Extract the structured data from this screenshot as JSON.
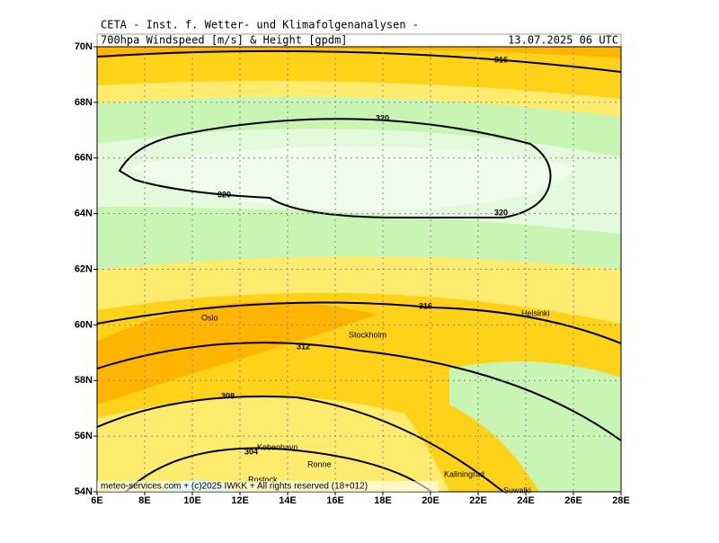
{
  "header": {
    "institute": "CETA - Inst. f. Wetter- und Klimafolgenanalysen -",
    "product": "700hpa Windspeed [m/s] & Height [gpdm]",
    "valid_time": "13.07.2025 06 UTC"
  },
  "lat_labels": [
    "54N",
    "56N",
    "58N",
    "60N",
    "62N",
    "64N",
    "66N",
    "68N",
    "70N"
  ],
  "lon_labels": [
    "6E",
    "8E",
    "10E",
    "12E",
    "14E",
    "16E",
    "18E",
    "20E",
    "22E",
    "24E",
    "26E",
    "28E"
  ],
  "contour_labels": [
    "316",
    "320",
    "320",
    "320",
    "316",
    "312",
    "308",
    "304"
  ],
  "cities": [
    "Oslo",
    "Stockholm",
    "Helsinki",
    "Kobenhavn",
    "Ronne",
    "Rostock",
    "Kaliningrad",
    "Suwalki"
  ],
  "footer": "meteo-services.com + (c)2025 IWKK + All rights reserved (18+012)"
}
